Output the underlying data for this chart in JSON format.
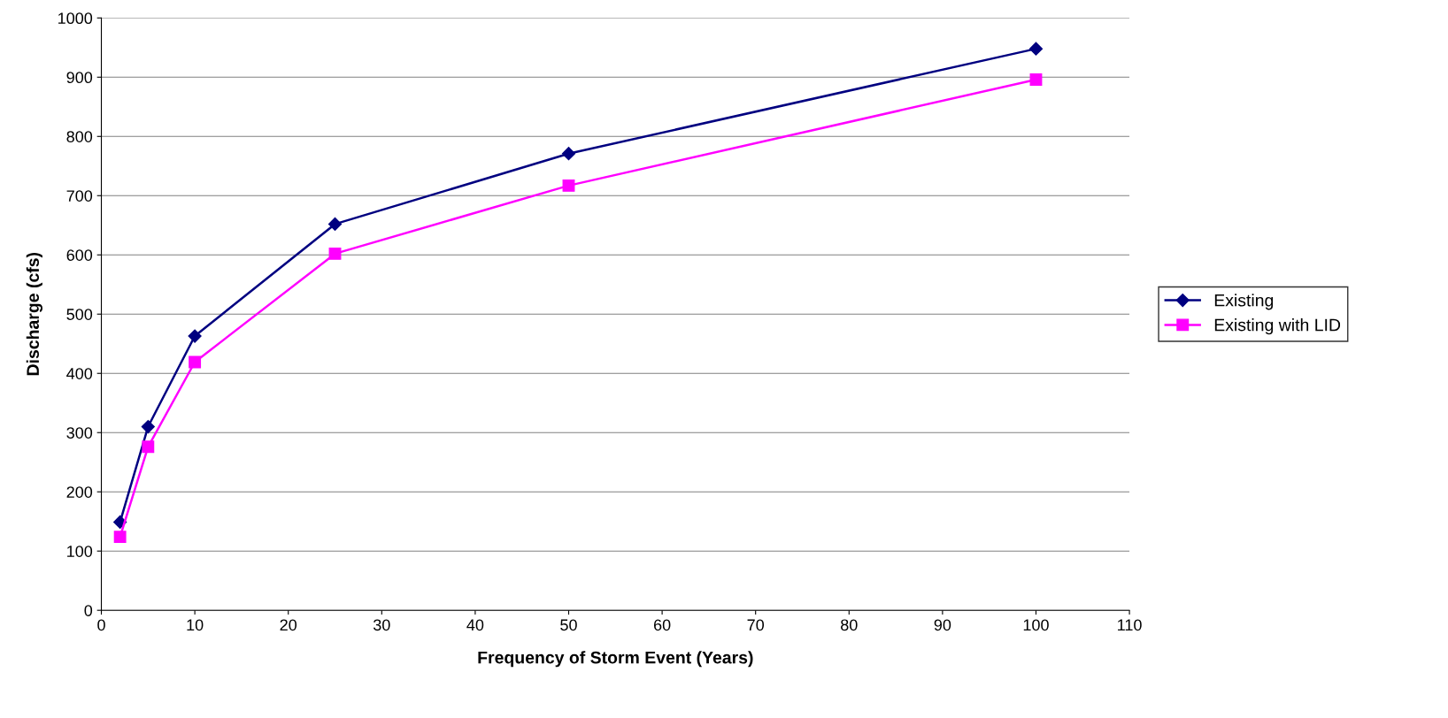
{
  "chart_data": {
    "type": "line",
    "xlabel": "Frequency of Storm Event (Years)",
    "ylabel": "Discharge (cfs)",
    "x": [
      2,
      5,
      10,
      25,
      50,
      100
    ],
    "series": [
      {
        "name": "Existing",
        "color": "#000080",
        "marker": "diamond",
        "values": [
          149,
          310,
          463,
          652,
          771,
          948
        ]
      },
      {
        "name": "Existing with LID",
        "color": "#ff00ff",
        "marker": "square",
        "values": [
          124,
          276,
          419,
          602,
          717,
          896
        ]
      }
    ],
    "xlim": [
      0,
      110
    ],
    "xticks": [
      0,
      10,
      20,
      30,
      40,
      50,
      60,
      70,
      80,
      90,
      100,
      110
    ],
    "ylim": [
      0,
      1000
    ],
    "yticks": [
      0,
      100,
      200,
      300,
      400,
      500,
      600,
      700,
      800,
      900,
      1000
    ],
    "grid": "y",
    "legend": "right",
    "line_style": "solid"
  }
}
